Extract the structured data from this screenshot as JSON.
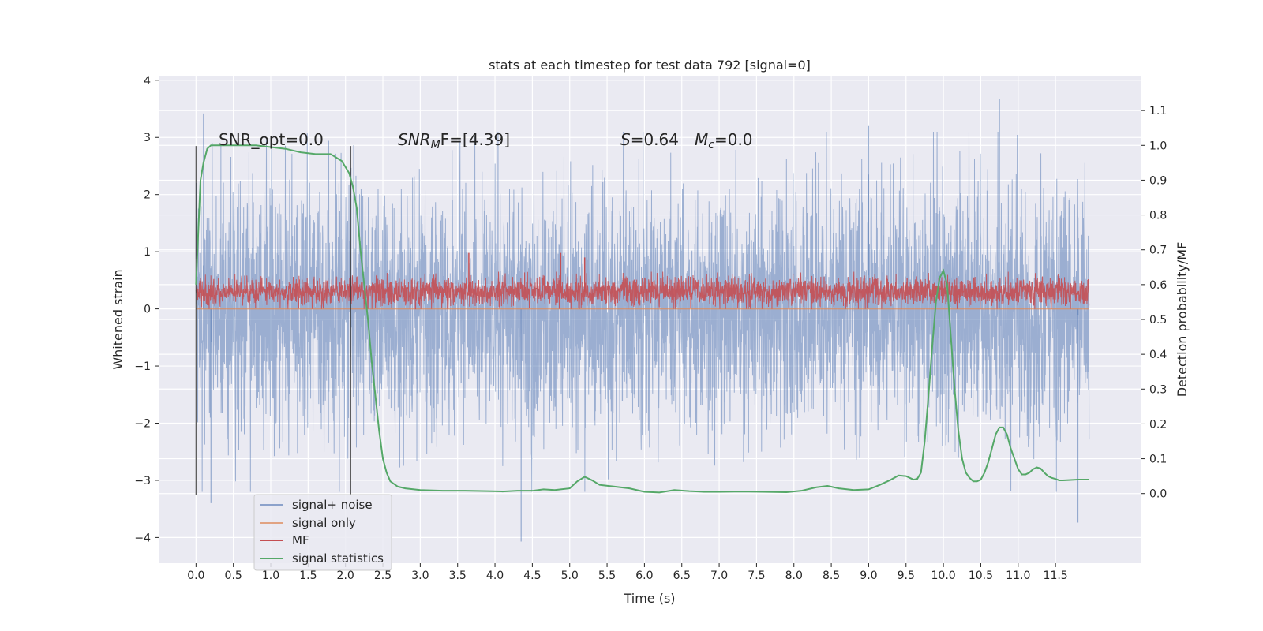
{
  "chart_data": {
    "type": "line",
    "title": "stats at each timestep for test data 792 [signal=0]",
    "xlabel": "Time (s)",
    "ylabel": "Whitened strain",
    "y2label": "Detection probability/MF",
    "xlim": [
      -0.5,
      12.65
    ],
    "ylim": [
      -4.45,
      4.08
    ],
    "y2lim": [
      -0.2,
      1.2
    ],
    "x_ticks": [
      0.0,
      0.5,
      1.0,
      1.5,
      2.0,
      2.5,
      3.0,
      3.5,
      4.0,
      4.5,
      5.0,
      5.5,
      6.0,
      6.5,
      7.0,
      7.5,
      8.0,
      8.5,
      9.0,
      9.5,
      10.0,
      10.5,
      11.0,
      11.5
    ],
    "x_tick_labels": [
      "0.0",
      "0.5",
      "1.0",
      "1.5",
      "2.0",
      "2.5",
      "3.0",
      "3.5",
      "4.0",
      "4.5",
      "5.0",
      "5.5",
      "6.0",
      "6.5",
      "7.0",
      "7.5",
      "8.0",
      "8.5",
      "9.0",
      "9.5",
      "10.0",
      "10.5",
      "11.0",
      "11.5"
    ],
    "y_ticks": [
      -4,
      -3,
      -2,
      -1,
      0,
      1,
      2,
      3,
      4
    ],
    "y_tick_labels": [
      "−4",
      "−3",
      "−2",
      "−1",
      "0",
      "1",
      "2",
      "3",
      "4"
    ],
    "y2_ticks": [
      0.0,
      0.1,
      0.2,
      0.3,
      0.4,
      0.5,
      0.6,
      0.7,
      0.8,
      0.9,
      1.0,
      1.1
    ],
    "y2_tick_labels": [
      "0.0",
      "0.1",
      "0.2",
      "0.3",
      "0.4",
      "0.5",
      "0.6",
      "0.7",
      "0.8",
      "0.9",
      "1.0",
      "1.1"
    ],
    "grid": true,
    "legend_placement": "lower-left",
    "annotations": {
      "snr_opt": "SNR_opt=0.0",
      "snr_mf_main": "SNR",
      "snr_mf_sub": "M",
      "snr_mf_rest": "F=[4.39]",
      "s_label": "S",
      "s_value": "=0.64",
      "mc_label": "M",
      "mc_sub": "c",
      "mc_value": "=0.0"
    },
    "vertical_markers": [
      0.0,
      2.07
    ],
    "series": [
      {
        "name": "signal+ noise",
        "color": "#4c72b0",
        "axis": "left",
        "x_range": [
          0.0,
          11.95
        ],
        "amplitude_std": 1.0,
        "notable_peaks": [
          [
            0.1,
            3.42
          ],
          [
            0.2,
            -3.4
          ],
          [
            4.35,
            -4.07
          ],
          [
            10.75,
            3.68
          ],
          [
            9.0,
            3.2
          ],
          [
            11.8,
            -3.74
          ]
        ]
      },
      {
        "name": "signal only",
        "color": "#dd8452",
        "axis": "left",
        "x": [
          0.0,
          11.95
        ],
        "y": [
          0.0,
          0.0
        ]
      },
      {
        "name": "MF",
        "color": "#c44e52",
        "axis": "left",
        "x_range": [
          0.0,
          11.95
        ],
        "baseline": 0.3,
        "band": [
          0.0,
          0.65
        ],
        "notable_peaks": [
          [
            3.65,
            0.98
          ],
          [
            4.88,
            0.98
          ],
          [
            5.2,
            0.9
          ]
        ]
      },
      {
        "name": "signal statistics",
        "color": "#55a868",
        "axis": "right",
        "x": [
          0.0,
          0.03,
          0.06,
          0.1,
          0.15,
          0.2,
          0.3,
          0.5,
          0.8,
          1.0,
          1.2,
          1.4,
          1.6,
          1.8,
          1.95,
          2.05,
          2.1,
          2.15,
          2.2,
          2.25,
          2.3,
          2.35,
          2.4,
          2.45,
          2.5,
          2.55,
          2.6,
          2.7,
          2.8,
          3.0,
          3.3,
          3.6,
          3.9,
          4.1,
          4.3,
          4.5,
          4.65,
          4.8,
          5.0,
          5.1,
          5.2,
          5.3,
          5.4,
          5.6,
          5.8,
          6.0,
          6.2,
          6.4,
          6.6,
          6.8,
          7.0,
          7.3,
          7.6,
          7.9,
          8.1,
          8.3,
          8.45,
          8.6,
          8.8,
          9.0,
          9.15,
          9.3,
          9.4,
          9.5,
          9.6,
          9.65,
          9.7,
          9.75,
          9.8,
          9.85,
          9.9,
          9.95,
          10.0,
          10.05,
          10.1,
          10.15,
          10.2,
          10.25,
          10.3,
          10.35,
          10.4,
          10.45,
          10.5,
          10.55,
          10.6,
          10.65,
          10.7,
          10.75,
          10.8,
          10.85,
          10.9,
          10.95,
          11.0,
          11.05,
          11.1,
          11.15,
          11.2,
          11.25,
          11.3,
          11.35,
          11.4,
          11.45,
          11.5,
          11.55,
          11.6,
          11.7,
          11.8,
          11.9,
          11.95
        ],
        "y": [
          0.6,
          0.75,
          0.9,
          0.95,
          0.99,
          1.0,
          1.0,
          1.0,
          1.0,
          0.995,
          0.99,
          0.98,
          0.975,
          0.975,
          0.955,
          0.92,
          0.88,
          0.82,
          0.7,
          0.6,
          0.5,
          0.38,
          0.28,
          0.18,
          0.1,
          0.06,
          0.035,
          0.02,
          0.015,
          0.01,
          0.008,
          0.008,
          0.007,
          0.006,
          0.008,
          0.008,
          0.012,
          0.01,
          0.015,
          0.035,
          0.048,
          0.038,
          0.025,
          0.02,
          0.015,
          0.005,
          0.003,
          0.01,
          0.007,
          0.005,
          0.005,
          0.006,
          0.005,
          0.004,
          0.008,
          0.018,
          0.022,
          0.015,
          0.01,
          0.012,
          0.025,
          0.04,
          0.052,
          0.05,
          0.04,
          0.042,
          0.06,
          0.15,
          0.28,
          0.42,
          0.55,
          0.62,
          0.64,
          0.6,
          0.45,
          0.3,
          0.18,
          0.1,
          0.06,
          0.045,
          0.035,
          0.035,
          0.04,
          0.06,
          0.09,
          0.13,
          0.17,
          0.19,
          0.19,
          0.17,
          0.13,
          0.1,
          0.07,
          0.055,
          0.055,
          0.06,
          0.07,
          0.075,
          0.072,
          0.06,
          0.05,
          0.045,
          0.042,
          0.038,
          0.038,
          0.039,
          0.04,
          0.04,
          0.04
        ]
      }
    ]
  }
}
